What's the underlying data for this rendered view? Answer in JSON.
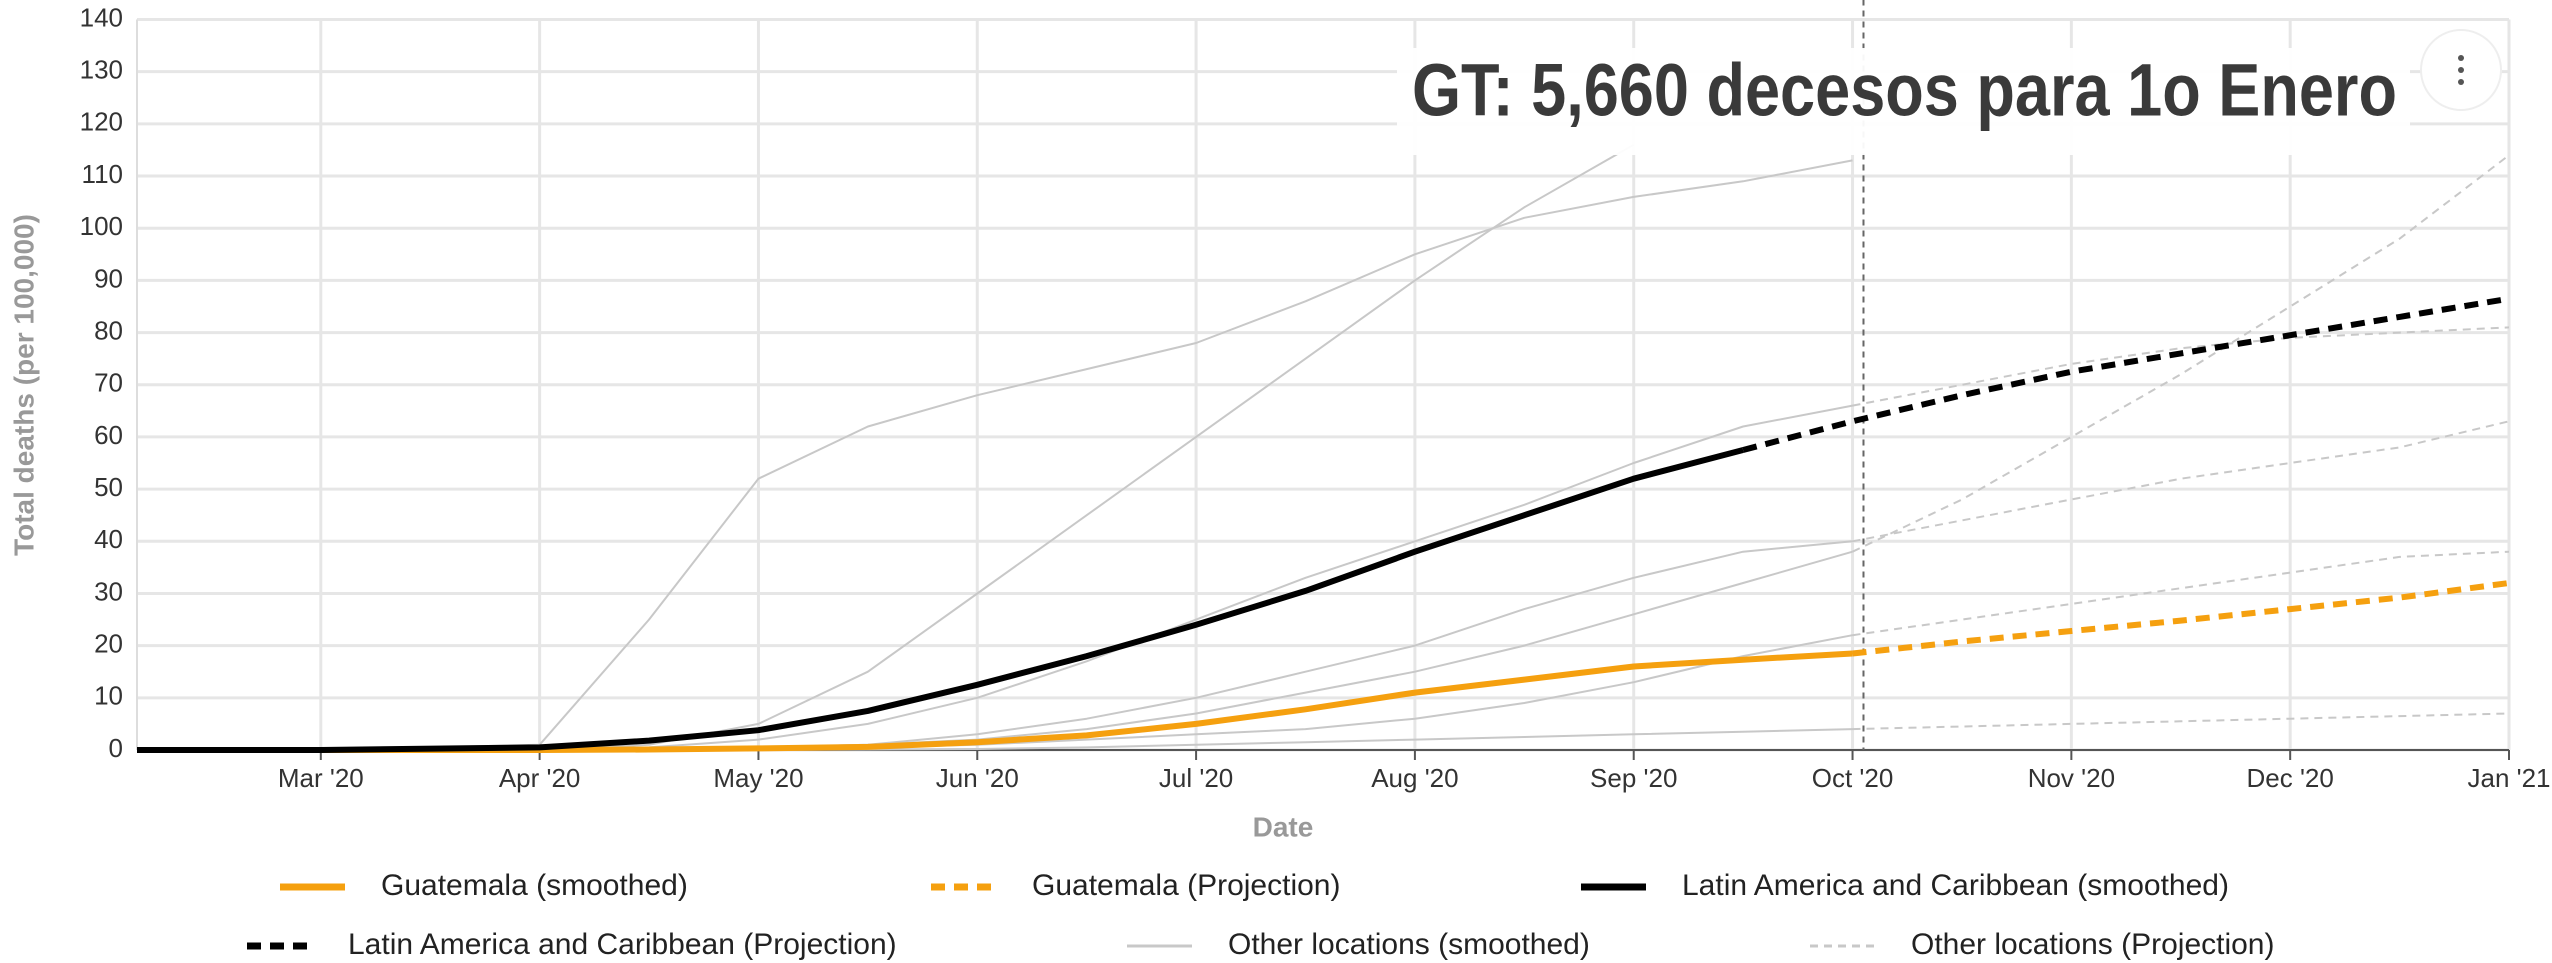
{
  "chart_data": {
    "type": "line",
    "annotation": "GT: 5,660 decesos para 1o Enero",
    "xlabel": "Date",
    "ylabel": "Total deaths (per 100,000)",
    "x": [
      0.16,
      1,
      2,
      2.5,
      3,
      3.5,
      4,
      4.5,
      5,
      5.5,
      6,
      6.5,
      7,
      7.5,
      8,
      8.5,
      9,
      9.5,
      10,
      10.5,
      11
    ],
    "xlim": [
      0.16,
      11
    ],
    "xticks": [
      {
        "value": 1,
        "label": "Mar '20"
      },
      {
        "value": 2,
        "label": "Apr '20"
      },
      {
        "value": 3,
        "label": "May '20"
      },
      {
        "value": 4,
        "label": "Jun '20"
      },
      {
        "value": 5,
        "label": "Jul '20"
      },
      {
        "value": 6,
        "label": "Aug '20"
      },
      {
        "value": 7,
        "label": "Sep '20"
      },
      {
        "value": 8,
        "label": "Oct '20"
      },
      {
        "value": 9,
        "label": "Nov '20"
      },
      {
        "value": 10,
        "label": "Dec '20"
      },
      {
        "value": 11,
        "label": "Jan '21"
      }
    ],
    "ylim": [
      0,
      140
    ],
    "yticks": [
      0,
      10,
      20,
      30,
      40,
      50,
      60,
      70,
      80,
      90,
      100,
      110,
      120,
      130,
      140
    ],
    "grid": true,
    "marker_x": 8.05,
    "series": [
      {
        "name": "Guatemala (smoothed)",
        "color": "#f5a00f",
        "dashed": false,
        "width": 6,
        "values": [
          0,
          0,
          0,
          0.1,
          0.3,
          0.6,
          1.5,
          2.8,
          5,
          7.8,
          11,
          13.5,
          16,
          17.3,
          18.5,
          null,
          null,
          null,
          null,
          null,
          null
        ]
      },
      {
        "name": "Guatemala (Projection)",
        "color": "#f5a00f",
        "dashed": true,
        "width": 6,
        "values": [
          null,
          null,
          null,
          null,
          null,
          null,
          null,
          null,
          null,
          null,
          null,
          null,
          null,
          null,
          18.5,
          20.8,
          22.8,
          24.8,
          27,
          29.2,
          32
        ]
      },
      {
        "name": "Latin America and Caribbean (smoothed)",
        "color": "#000000",
        "dashed": false,
        "width": 6,
        "values": [
          0,
          0,
          0.5,
          1.8,
          3.8,
          7.5,
          12.5,
          18,
          24,
          30.5,
          38,
          45,
          52,
          57.5,
          null,
          null,
          null,
          null,
          null,
          null,
          null
        ]
      },
      {
        "name": "Latin America and Caribbean (Projection)",
        "color": "#000000",
        "dashed": true,
        "width": 6,
        "values": [
          null,
          null,
          null,
          null,
          null,
          null,
          null,
          null,
          null,
          null,
          null,
          null,
          null,
          57.5,
          63,
          68,
          72.5,
          76,
          79.5,
          83,
          86.5
        ]
      },
      {
        "name": "Other locations (smoothed)",
        "color": "#c8c8c8",
        "dashed": false,
        "width": 2,
        "lines": [
          [
            0,
            0,
            1,
            25,
            52,
            62,
            68,
            73,
            78,
            86,
            95,
            102,
            106,
            109,
            113,
            null,
            null,
            null,
            null,
            null,
            null
          ],
          [
            0,
            0,
            0,
            1,
            5,
            15,
            30,
            45,
            60,
            75,
            90,
            104,
            116,
            null,
            null,
            null,
            null,
            null,
            null,
            null,
            null
          ],
          [
            0,
            0,
            0,
            0.5,
            2,
            5,
            10,
            17,
            25,
            33,
            40,
            47,
            55,
            62,
            66,
            null,
            null,
            null,
            null,
            null,
            null
          ],
          [
            0,
            0,
            0,
            0,
            0.5,
            1,
            3,
            6,
            10,
            15,
            20,
            27,
            33,
            38,
            40,
            null,
            null,
            null,
            null,
            null,
            null
          ],
          [
            0,
            0,
            0,
            0,
            0.2,
            0.5,
            1,
            2,
            3,
            4,
            6,
            9,
            13,
            18,
            22,
            null,
            null,
            null,
            null,
            null,
            null
          ],
          [
            0,
            0,
            0,
            0,
            0,
            0.1,
            0.2,
            0.5,
            1,
            1.5,
            2,
            2.5,
            3,
            3.5,
            4,
            null,
            null,
            null,
            null,
            null,
            null
          ],
          [
            0,
            0,
            0,
            0,
            0.5,
            1,
            2,
            4,
            7,
            11,
            15,
            20,
            26,
            32,
            38,
            null,
            null,
            null,
            null,
            null,
            null
          ]
        ]
      },
      {
        "name": "Other locations (Projection)",
        "color": "#c8c8c8",
        "dashed": true,
        "width": 2,
        "lines": [
          [
            null,
            null,
            null,
            null,
            null,
            null,
            null,
            null,
            null,
            null,
            null,
            null,
            null,
            null,
            66,
            70,
            74,
            77,
            79,
            80,
            81
          ],
          [
            null,
            null,
            null,
            null,
            null,
            null,
            null,
            null,
            null,
            null,
            null,
            null,
            null,
            null,
            40,
            44,
            48,
            52,
            55,
            58,
            63
          ],
          [
            null,
            null,
            null,
            null,
            null,
            null,
            null,
            null,
            null,
            null,
            null,
            null,
            null,
            null,
            22,
            25,
            28,
            31,
            34,
            37,
            38
          ],
          [
            null,
            null,
            null,
            null,
            null,
            null,
            null,
            null,
            null,
            null,
            null,
            null,
            null,
            null,
            4,
            4.5,
            5,
            5.5,
            6,
            6.5,
            7
          ],
          [
            null,
            null,
            null,
            null,
            null,
            null,
            null,
            null,
            null,
            null,
            null,
            null,
            null,
            null,
            38,
            48,
            60,
            72,
            85,
            98,
            114
          ]
        ]
      }
    ]
  }
}
